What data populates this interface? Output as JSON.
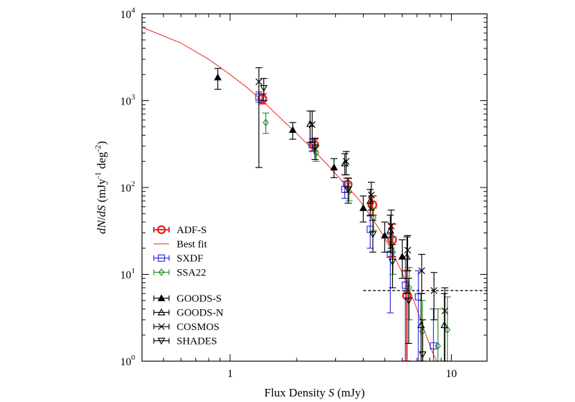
{
  "chart_data": {
    "type": "scatter",
    "title": "",
    "xlabel": "Flux Density S  (mJy)",
    "ylabel": "dN/dS  (mJy⁻¹ deg⁻²)",
    "xlabel_parts": {
      "pre": "Flux Density ",
      "var": "S",
      "post": "  (mJy)"
    },
    "ylabel_parts": {
      "a": "dN",
      "b": "/",
      "c": "dS",
      "d": "  (mJy",
      "e": "-1",
      "f": " deg",
      "g": "-2",
      "h": ")"
    },
    "x_scale": "log",
    "y_scale": "log",
    "xlim": [
      0.4,
      14.5
    ],
    "ylim": [
      1,
      10000
    ],
    "x_tick_labels": [
      {
        "value": 1,
        "label": "1"
      },
      {
        "value": 10,
        "label": "10"
      }
    ],
    "y_tick_labels": [
      {
        "value": 1,
        "base": "10",
        "exp": "0"
      },
      {
        "value": 10,
        "base": "10",
        "exp": "1"
      },
      {
        "value": 100,
        "base": "10",
        "exp": "2"
      },
      {
        "value": 1000,
        "base": "10",
        "exp": "3"
      },
      {
        "value": 10000,
        "base": "10",
        "exp": "4"
      }
    ],
    "grid": false,
    "legend_position": "lower-left",
    "threshold_line": {
      "y": 6.5,
      "x_start": 4.0,
      "x_end": 14.5,
      "style": "dashed"
    },
    "best_fit": {
      "name": "Best fit",
      "color": "#e8281e",
      "x": [
        0.4,
        0.6,
        0.8,
        1.0,
        1.2,
        1.4,
        1.7,
        2.0,
        2.4,
        2.8,
        3.3,
        3.8,
        4.3,
        4.8,
        5.3,
        5.8,
        6.3,
        6.8,
        7.3,
        7.8,
        8.3,
        8.6
      ],
      "y": [
        7000,
        4600,
        3000,
        2000,
        1400,
        1000,
        620,
        420,
        265,
        175,
        110,
        74,
        48,
        31,
        20,
        12.5,
        7.8,
        4.8,
        2.9,
        1.8,
        1.2,
        1.0
      ]
    },
    "series": [
      {
        "name": "ADF-S",
        "marker": "circle",
        "color": "#e8281e",
        "x": [
          1.4,
          2.4,
          3.4,
          4.4,
          5.4,
          6.3
        ],
        "y": [
          1050,
          310,
          108,
          63,
          25,
          5.7
        ],
        "y_low": [
          920,
          265,
          88,
          48,
          16,
          1
        ],
        "y_high": [
          1200,
          360,
          128,
          80,
          38,
          11
        ]
      },
      {
        "name": "SXDF",
        "marker": "square",
        "color": "#2c2cd8",
        "x": [
          1.35,
          2.35,
          3.3,
          4.3,
          5.3,
          6.2,
          7.1,
          8.3
        ],
        "y": [
          1100,
          310,
          95,
          33,
          17,
          7.5,
          5.5,
          1.5
        ],
        "y_low": [
          960,
          260,
          75,
          20,
          3.6,
          1,
          1,
          1
        ],
        "y_high": [
          1260,
          365,
          118,
          47,
          29,
          15,
          11,
          4
        ]
      },
      {
        "name": "SSA22",
        "marker": "diamond",
        "color": "#2a8a2a",
        "x": [
          1.45,
          2.45,
          3.45,
          4.45,
          5.45,
          6.45,
          7.4,
          8.7,
          9.6
        ],
        "y": [
          560,
          250,
          90,
          45,
          18,
          7,
          2.2,
          1.5,
          2.3
        ],
        "y_low": [
          420,
          200,
          70,
          32,
          10,
          3,
          1,
          1,
          1
        ],
        "y_high": [
          720,
          300,
          112,
          58,
          27,
          12,
          5,
          4,
          5.5
        ]
      },
      {
        "name": "GOODS-S",
        "marker": "triangle-filled",
        "color": "#000000",
        "x": [
          0.88,
          1.92,
          2.95,
          4.0,
          5.0,
          6.0
        ],
        "y": [
          1850,
          460,
          170,
          58,
          28,
          16
        ],
        "y_low": [
          1350,
          360,
          130,
          40,
          18,
          9
        ],
        "y_high": [
          2350,
          560,
          215,
          80,
          40,
          25
        ]
      },
      {
        "name": "GOODS-N",
        "marker": "triangle",
        "color": "#000000",
        "x": [
          2.3,
          3.3,
          4.3,
          5.3,
          6.3,
          7.3,
          9.3
        ],
        "y": [
          540,
          190,
          70,
          32,
          16,
          2.6,
          2.6
        ],
        "y_low": [
          330,
          140,
          48,
          18,
          6,
          1,
          1
        ],
        "y_high": [
          760,
          245,
          95,
          48,
          27,
          6,
          6
        ]
      },
      {
        "name": "COSMOS",
        "marker": "cross",
        "color": "#000000",
        "x": [
          1.35,
          2.35,
          3.35,
          4.35,
          5.35,
          6.35,
          7.35,
          8.35,
          9.35
        ],
        "y": [
          1650,
          530,
          200,
          82,
          36,
          19,
          11,
          6.5,
          3.8
        ],
        "y_low": [
          170,
          330,
          140,
          55,
          20,
          11,
          6,
          3,
          1
        ],
        "y_high": [
          2400,
          760,
          260,
          115,
          55,
          28,
          17,
          10.5,
          7
        ]
      },
      {
        "name": "SHADES",
        "marker": "triangle-down",
        "color": "#000000",
        "x": [
          1.42,
          2.42,
          3.42,
          4.42,
          5.42,
          6.42,
          7.42
        ],
        "y": [
          1400,
          290,
          95,
          29,
          14,
          5,
          1.2
        ],
        "y_low": [
          1000,
          210,
          66,
          18,
          7,
          1.6,
          1
        ],
        "y_high": [
          1800,
          370,
          128,
          42,
          22,
          9,
          3
        ]
      }
    ],
    "legend": [
      {
        "group": 1,
        "ref": "ADF-S",
        "label": "ADF-S"
      },
      {
        "group": 1,
        "ref": "Best fit",
        "label": "Best fit"
      },
      {
        "group": 1,
        "ref": "SXDF",
        "label": "SXDF"
      },
      {
        "group": 1,
        "ref": "SSA22",
        "label": "SSA22"
      },
      {
        "group": 2,
        "ref": "GOODS-S",
        "label": "GOODS-S"
      },
      {
        "group": 2,
        "ref": "GOODS-N",
        "label": "GOODS-N"
      },
      {
        "group": 2,
        "ref": "COSMOS",
        "label": "COSMOS"
      },
      {
        "group": 2,
        "ref": "SHADES",
        "label": "SHADES"
      }
    ]
  }
}
